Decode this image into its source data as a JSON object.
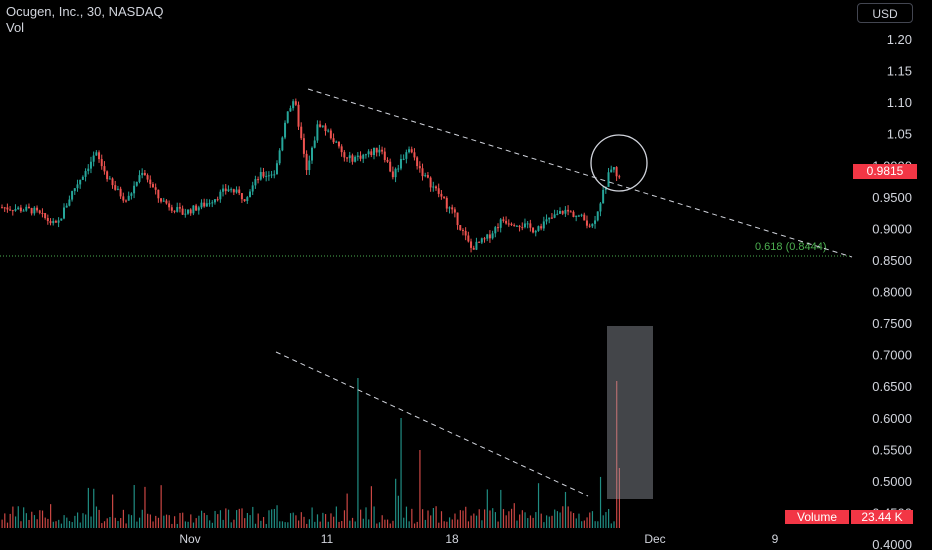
{
  "header": {
    "title": "Ocugen, Inc., 30, NASDAQ",
    "subtitle": "Vol"
  },
  "currency_button": "USD",
  "last_price_label": "0.9815",
  "volume_label": {
    "name": "Volume",
    "value": "23.44 K"
  },
  "fib_label": "0.618 (0.8444)",
  "colors": {
    "up": "#26a69a",
    "down": "#ef5350",
    "fib": "#4caf50",
    "tag": "#f23645",
    "background": "#000000"
  },
  "chart_data": {
    "type": "candlestick",
    "title": "Ocugen, Inc., 30, NASDAQ",
    "y_ticks": [
      "1.20",
      "1.15",
      "1.10",
      "1.05",
      "1.0000",
      "0.9500",
      "0.9000",
      "0.8500",
      "0.8000",
      "0.7500",
      "0.7000",
      "0.6500",
      "0.6000",
      "0.5500",
      "0.5000",
      "0.4500",
      "0.4000"
    ],
    "x_ticks": [
      "Nov",
      "11",
      "18",
      "Dec",
      "9"
    ],
    "ylim": [
      0.4,
      1.2
    ],
    "last_price": 0.9815,
    "fib_level": 0.8444,
    "price_path": [
      {
        "t": 0,
        "p": 0.935
      },
      {
        "t": 0.04,
        "p": 0.93
      },
      {
        "t": 0.07,
        "p": 0.905
      },
      {
        "t": 0.09,
        "p": 0.96
      },
      {
        "t": 0.12,
        "p": 1.02
      },
      {
        "t": 0.14,
        "p": 0.97
      },
      {
        "t": 0.16,
        "p": 0.945
      },
      {
        "t": 0.18,
        "p": 0.995
      },
      {
        "t": 0.2,
        "p": 0.95
      },
      {
        "t": 0.23,
        "p": 0.925
      },
      {
        "t": 0.26,
        "p": 0.94
      },
      {
        "t": 0.29,
        "p": 0.965
      },
      {
        "t": 0.31,
        "p": 0.95
      },
      {
        "t": 0.33,
        "p": 0.985
      },
      {
        "t": 0.35,
        "p": 0.99
      },
      {
        "t": 0.365,
        "p": 1.09
      },
      {
        "t": 0.375,
        "p": 1.1
      },
      {
        "t": 0.39,
        "p": 0.99
      },
      {
        "t": 0.405,
        "p": 1.07
      },
      {
        "t": 0.42,
        "p": 1.05
      },
      {
        "t": 0.44,
        "p": 1.01
      },
      {
        "t": 0.47,
        "p": 1.02
      },
      {
        "t": 0.485,
        "p": 1.03
      },
      {
        "t": 0.5,
        "p": 0.985
      },
      {
        "t": 0.52,
        "p": 1.03
      },
      {
        "t": 0.54,
        "p": 0.985
      },
      {
        "t": 0.56,
        "p": 0.955
      },
      {
        "t": 0.58,
        "p": 0.92
      },
      {
        "t": 0.6,
        "p": 0.87
      },
      {
        "t": 0.62,
        "p": 0.885
      },
      {
        "t": 0.64,
        "p": 0.915
      },
      {
        "t": 0.66,
        "p": 0.91
      },
      {
        "t": 0.68,
        "p": 0.9
      },
      {
        "t": 0.7,
        "p": 0.915
      },
      {
        "t": 0.72,
        "p": 0.93
      },
      {
        "t": 0.74,
        "p": 0.92
      },
      {
        "t": 0.755,
        "p": 0.905
      },
      {
        "t": 0.77,
        "p": 0.96
      },
      {
        "t": 0.78,
        "p": 1.0
      },
      {
        "t": 0.79,
        "p": 0.98
      }
    ],
    "volume_relative": [
      0.1,
      0.2,
      0.08,
      0.3,
      0.15,
      0.1,
      0.9,
      0.2,
      0.15,
      0.6,
      0.2,
      0.35,
      0.1,
      0.4,
      0.15,
      0.2,
      0.1,
      0.25,
      0.15,
      1.0,
      0.35
    ]
  }
}
